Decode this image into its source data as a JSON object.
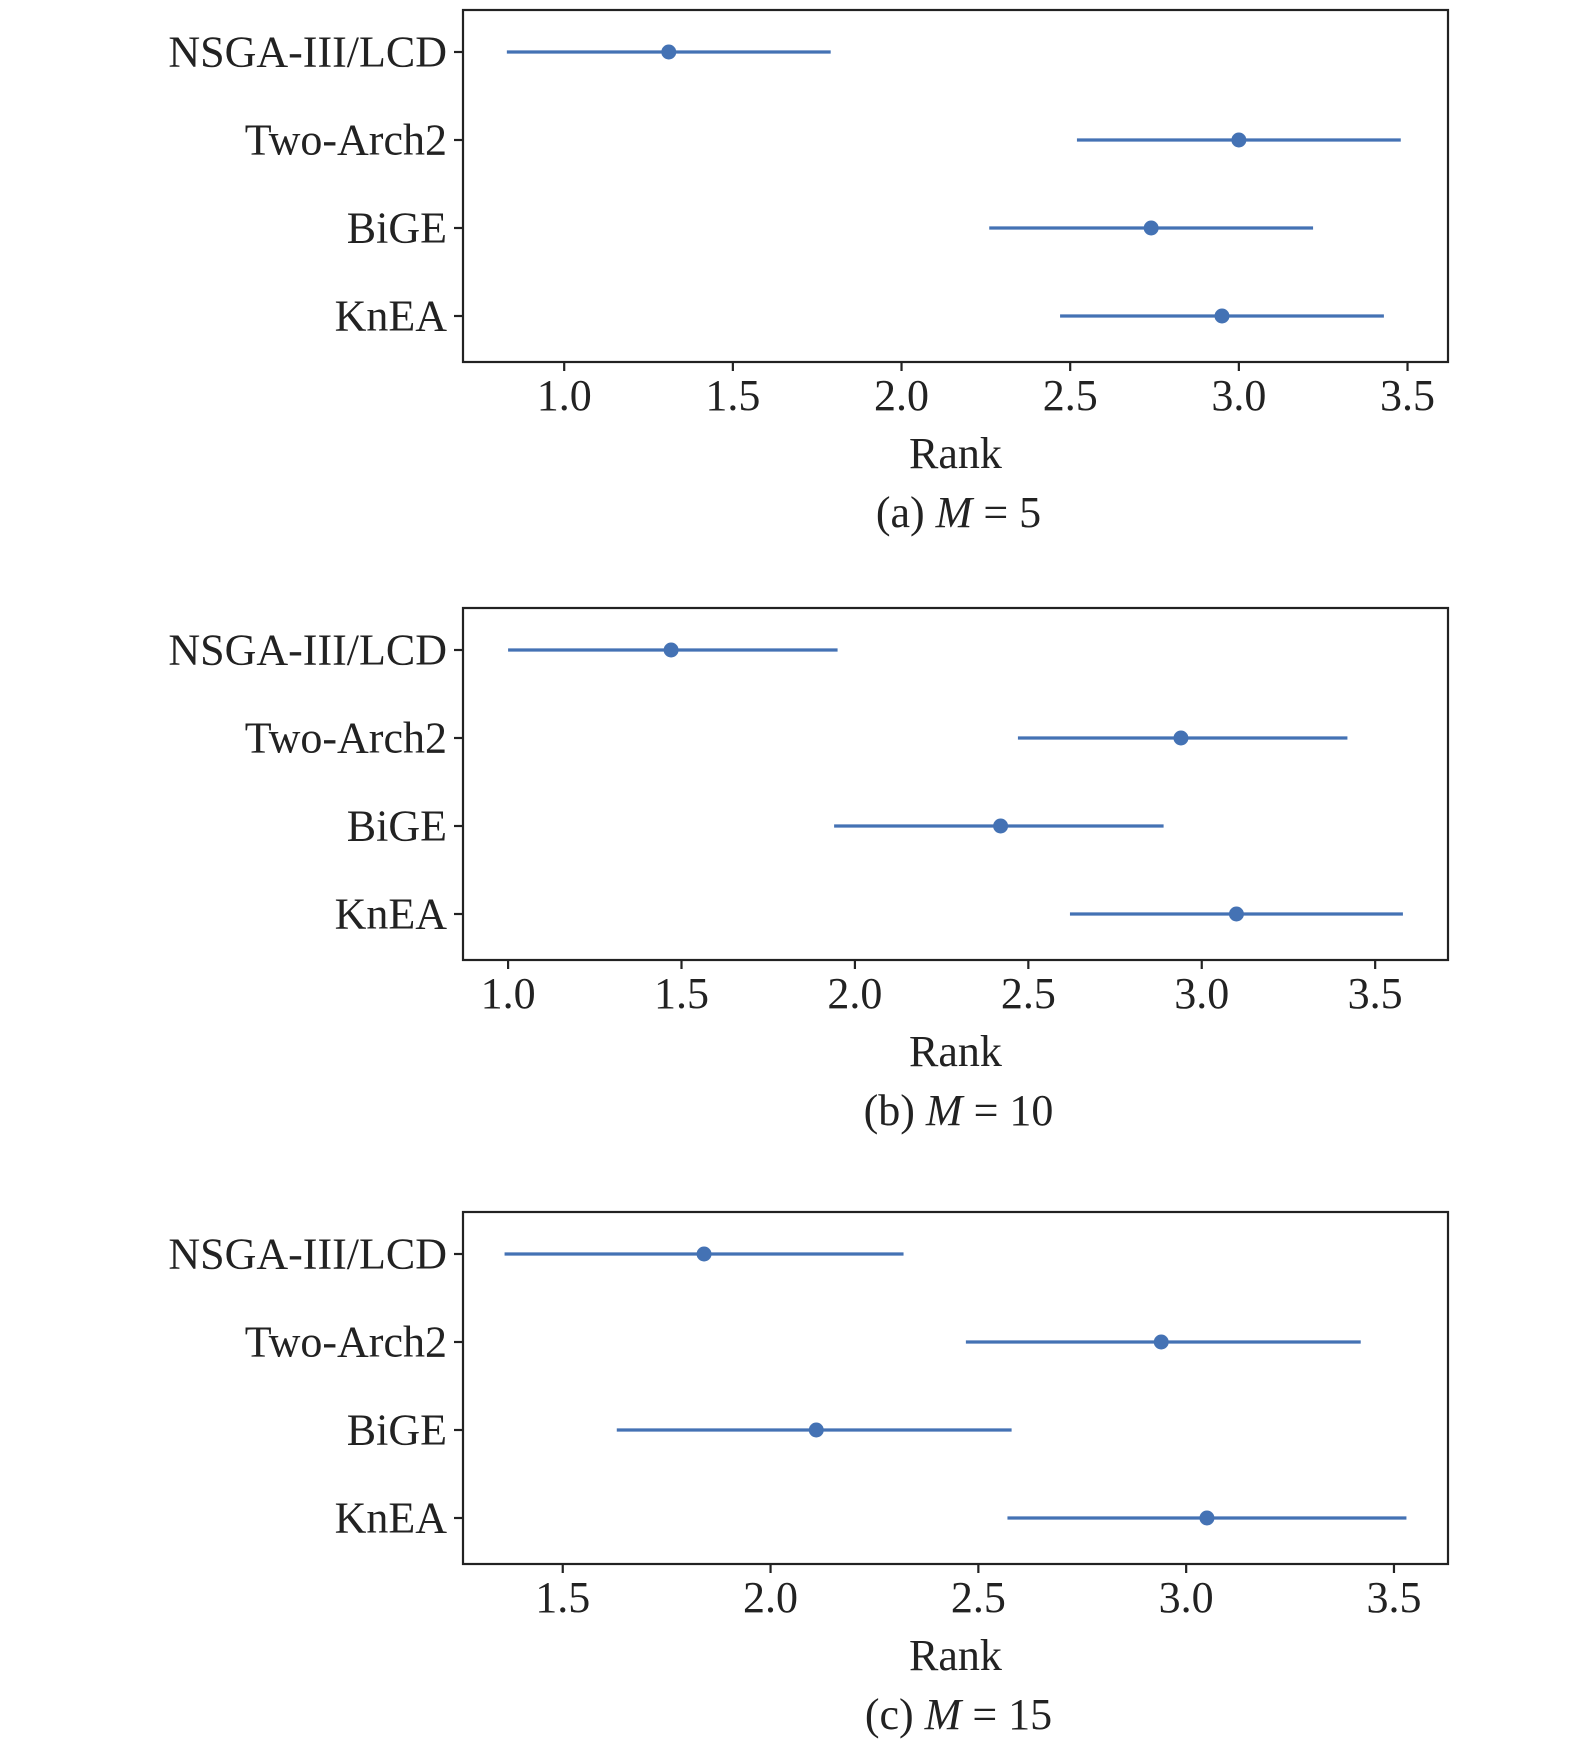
{
  "chart_data": [
    {
      "type": "errorbar",
      "panel": "a",
      "categories": [
        "NSGA-III/LCD",
        "Two-Arch2",
        "BiGE",
        "KnEA"
      ],
      "points": [
        {
          "category": "NSGA-III/LCD",
          "mean": 1.31,
          "low": 0.83,
          "high": 1.79
        },
        {
          "category": "Two-Arch2",
          "mean": 3.0,
          "low": 2.52,
          "high": 3.48
        },
        {
          "category": "BiGE",
          "mean": 2.74,
          "low": 2.26,
          "high": 3.22
        },
        {
          "category": "KnEA",
          "mean": 2.95,
          "low": 2.47,
          "high": 3.43
        }
      ],
      "xlim": [
        0.7,
        3.62
      ],
      "xticks": [
        "1.0",
        "1.5",
        "2.0",
        "2.5",
        "3.0",
        "3.5"
      ],
      "xlabel": "Rank",
      "caption_prefix": "(a) ",
      "caption_var": "M",
      "caption_suffix": " = 5"
    },
    {
      "type": "errorbar",
      "panel": "b",
      "categories": [
        "NSGA-III/LCD",
        "Two-Arch2",
        "BiGE",
        "KnEA"
      ],
      "points": [
        {
          "category": "NSGA-III/LCD",
          "mean": 1.47,
          "low": 1.0,
          "high": 1.95
        },
        {
          "category": "Two-Arch2",
          "mean": 2.94,
          "low": 2.47,
          "high": 3.42
        },
        {
          "category": "BiGE",
          "mean": 2.42,
          "low": 1.94,
          "high": 2.89
        },
        {
          "category": "KnEA",
          "mean": 3.1,
          "low": 2.62,
          "high": 3.58
        }
      ],
      "xlim": [
        0.87,
        3.71
      ],
      "xticks": [
        "1.0",
        "1.5",
        "2.0",
        "2.5",
        "3.0",
        "3.5"
      ],
      "xlabel": "Rank",
      "caption_prefix": "(b) ",
      "caption_var": "M",
      "caption_suffix": " = 10"
    },
    {
      "type": "errorbar",
      "panel": "c",
      "categories": [
        "NSGA-III/LCD",
        "Two-Arch2",
        "BiGE",
        "KnEA"
      ],
      "points": [
        {
          "category": "NSGA-III/LCD",
          "mean": 1.84,
          "low": 1.36,
          "high": 2.32
        },
        {
          "category": "Two-Arch2",
          "mean": 2.94,
          "low": 2.47,
          "high": 3.42
        },
        {
          "category": "BiGE",
          "mean": 2.11,
          "low": 1.63,
          "high": 2.58
        },
        {
          "category": "KnEA",
          "mean": 3.05,
          "low": 2.57,
          "high": 3.53
        }
      ],
      "xlim": [
        1.26,
        3.63
      ],
      "xticks": [
        "1.5",
        "2.0",
        "2.5",
        "3.0",
        "3.5"
      ],
      "xlabel": "Rank",
      "caption_prefix": "(c) ",
      "caption_var": "M",
      "caption_suffix": " = 15"
    }
  ],
  "colors": {
    "series": "#4472b4",
    "axis": "#222222"
  }
}
